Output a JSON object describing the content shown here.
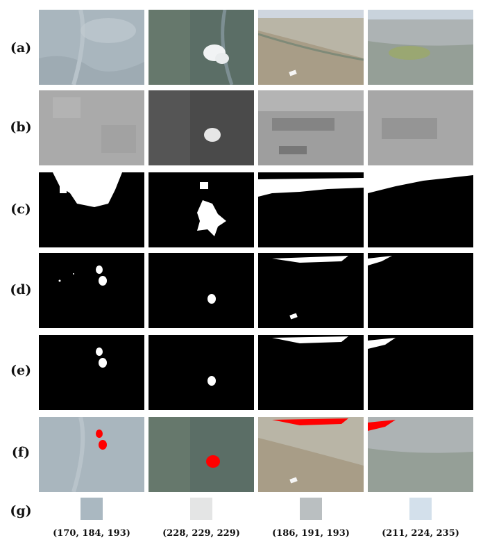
{
  "row_labels": [
    "(a)",
    "(b)",
    "(c)",
    "(d)",
    "(e)",
    "(f)",
    "(g)"
  ],
  "columns": [
    {
      "swatch_color": "#aab8c1",
      "rgb_label": "(170, 184, 193)"
    },
    {
      "swatch_color": "#e4e5e5",
      "rgb_label": "(228, 229, 229)"
    },
    {
      "swatch_color": "#babfc1",
      "rgb_label": "(186, 191, 193)"
    },
    {
      "swatch_color": "#d3e0eb",
      "rgb_label": "(211, 224, 235)"
    }
  ],
  "overlay_color": "#ff0000"
}
